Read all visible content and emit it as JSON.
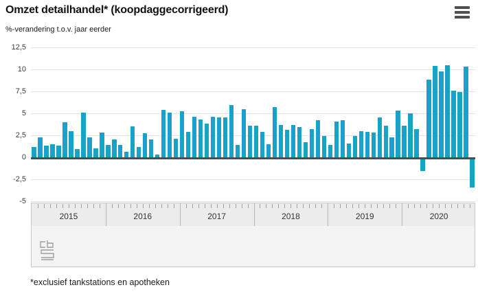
{
  "header": {
    "title": "Omzet detailhandel* (koopdaggecorrigeerd)",
    "subtitle": "%-verandering t.o.v. jaar eerder"
  },
  "menu": {
    "icon": "hamburger-menu"
  },
  "chart_data": {
    "type": "bar",
    "title": "Omzet detailhandel* (koopdaggecorrigeerd)",
    "subtitle": "%-verandering t.o.v. jaar eerder",
    "unit": "%",
    "ylabel": "%-verandering t.o.v. jaar eerder",
    "xlabel": "",
    "ylim": [
      -5,
      12.5
    ],
    "grid": true,
    "legend_position": "none",
    "bar_color": "#18a2c8",
    "yticks": [
      {
        "value": 12.5,
        "label": "12,5"
      },
      {
        "value": 10,
        "label": "10"
      },
      {
        "value": 7.5,
        "label": "7,5"
      },
      {
        "value": 5,
        "label": "5"
      },
      {
        "value": 2.5,
        "label": "2,5"
      },
      {
        "value": 0,
        "label": "0"
      },
      {
        "value": -2.5,
        "label": "-2,5"
      },
      {
        "value": -5,
        "label": "-5"
      }
    ],
    "categories": [
      "2015",
      "2016",
      "2017",
      "2018",
      "2019",
      "2020"
    ],
    "months_per_year": 12,
    "series": [
      {
        "name": "%-verandering t.o.v. jaar eerder",
        "values_by_year": {
          "2015": [
            1.2,
            2.3,
            1.3,
            1.5,
            1.3,
            4.0,
            3.0,
            0.9,
            5.1,
            2.3,
            1.0,
            2.8
          ],
          "2016": [
            1.4,
            2.0,
            1.4,
            0.6,
            3.5,
            1.2,
            2.7,
            2.0,
            0.3,
            5.4,
            5.1,
            2.1
          ],
          "2017": [
            5.2,
            2.9,
            4.6,
            4.3,
            3.8,
            4.6,
            4.5,
            4.5,
            5.9,
            1.4,
            5.5,
            3.6
          ],
          "2018": [
            3.6,
            2.9,
            1.5,
            5.7,
            3.7,
            3.1,
            3.7,
            3.4,
            1.7,
            3.2,
            4.2,
            2.4
          ],
          "2019": [
            1.4,
            4.1,
            4.2,
            1.6,
            2.4,
            3.0,
            2.9,
            2.8,
            4.5,
            3.6,
            2.3,
            5.3
          ],
          "2020": [
            3.6,
            5.0,
            3.2,
            -1.3,
            8.8,
            10.4,
            9.8,
            10.5,
            7.6,
            7.4,
            10.3,
            -3.2
          ]
        }
      }
    ]
  },
  "navigator": {
    "years": [
      "2015",
      "2016",
      "2017",
      "2018",
      "2019",
      "2020"
    ]
  },
  "footer": {
    "footnote": "*exclusief tankstations en apotheken",
    "logo": "cbs-logo"
  },
  "colors": {
    "bar": "#18a2c8",
    "grid": "#e3e3e3",
    "zero_line": "#4d4d4d",
    "nav_bg": "#f0f0f0",
    "text": "#1a1a1a"
  }
}
